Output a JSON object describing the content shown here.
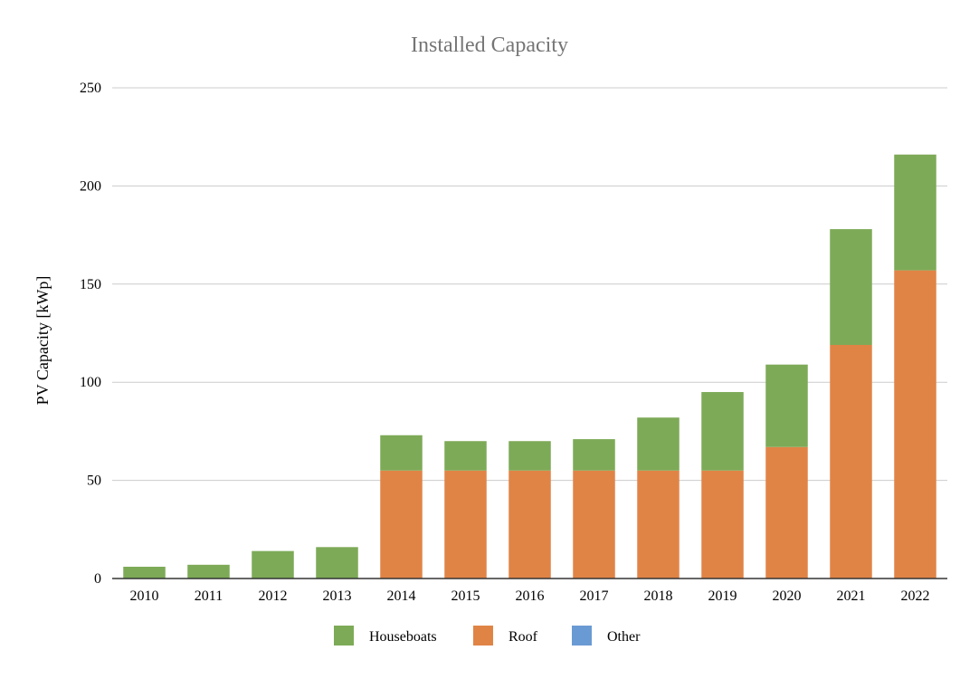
{
  "chart_data": {
    "type": "bar",
    "stacked": true,
    "title": "Installed Capacity",
    "xlabel": "",
    "ylabel": "PV Capacity [kWp]",
    "ylim": [
      0,
      250
    ],
    "yticks": [
      0,
      50,
      100,
      150,
      200,
      250
    ],
    "grid": true,
    "legend_position": "bottom",
    "categories": [
      "2010",
      "2011",
      "2012",
      "2013",
      "2014",
      "2015",
      "2016",
      "2017",
      "2018",
      "2019",
      "2020",
      "2021",
      "2022"
    ],
    "series": [
      {
        "name": "Roof",
        "color": "#e08446",
        "values": [
          0,
          0,
          0,
          0,
          55,
          55,
          55,
          55,
          55,
          55,
          67,
          119,
          157
        ]
      },
      {
        "name": "Houseboats",
        "color": "#7daa57",
        "values": [
          6,
          7,
          14,
          16,
          18,
          15,
          15,
          16,
          27,
          40,
          42,
          59,
          59
        ]
      },
      {
        "name": "Other",
        "color": "#6a9ad3",
        "values": [
          0,
          0,
          0,
          0,
          0,
          0,
          0,
          0,
          0,
          0,
          0,
          0,
          0
        ]
      }
    ],
    "legend_order": [
      "Houseboats",
      "Roof",
      "Other"
    ]
  }
}
